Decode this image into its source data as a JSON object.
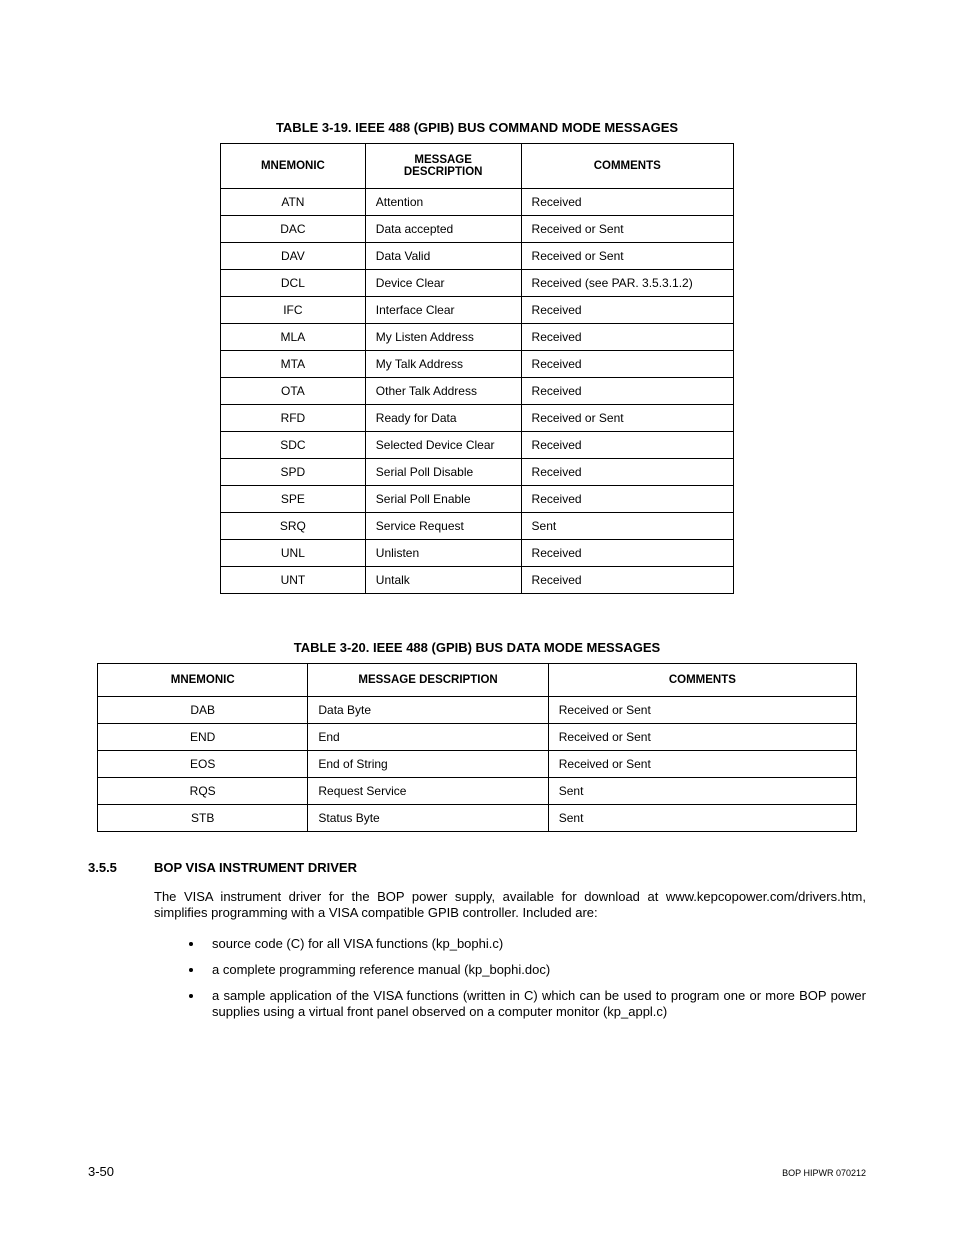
{
  "table1": {
    "title": "TABLE 3-19.  IEEE 488 (GPIB) BUS COMMAND MODE MESSAGES",
    "columns": [
      "MNEMONIC",
      "MESSAGE DESCRIPTION",
      "COMMENTS"
    ],
    "header_col2_line1": "MESSAGE",
    "header_col2_line2": "DESCRIPTION",
    "rows": [
      [
        "ATN",
        "Attention",
        "Received"
      ],
      [
        "DAC",
        "Data accepted",
        "Received or Sent"
      ],
      [
        "DAV",
        "Data Valid",
        "Received or Sent"
      ],
      [
        "DCL",
        "Device Clear",
        "Received (see PAR. 3.5.3.1.2)"
      ],
      [
        "IFC",
        "Interface Clear",
        "Received"
      ],
      [
        "MLA",
        "My Listen Address",
        "Received"
      ],
      [
        "MTA",
        "My Talk Address",
        "Received"
      ],
      [
        "OTA",
        "Other Talk Address",
        "Received"
      ],
      [
        "RFD",
        "Ready for Data",
        "Received or Sent"
      ],
      [
        "SDC",
        "Selected Device Clear",
        "Received"
      ],
      [
        "SPD",
        "Serial Poll Disable",
        "Received"
      ],
      [
        "SPE",
        "Serial Poll Enable",
        "Received"
      ],
      [
        "SRQ",
        "Service Request",
        "Sent"
      ],
      [
        "UNL",
        "Unlisten",
        "Received"
      ],
      [
        "UNT",
        "Untalk",
        "Received"
      ]
    ]
  },
  "table2": {
    "title": "TABLE 3-20.  IEEE 488 (GPIB) BUS DATA MODE MESSAGES",
    "columns": [
      "MNEMONIC",
      "MESSAGE DESCRIPTION",
      "COMMENTS"
    ],
    "rows": [
      [
        "DAB",
        "Data Byte",
        "Received or Sent"
      ],
      [
        "END",
        "End",
        "Received or Sent"
      ],
      [
        "EOS",
        "End of String",
        "Received or Sent"
      ],
      [
        "RQS",
        "Request Service",
        "Sent"
      ],
      [
        "STB",
        "Status Byte",
        "Sent"
      ]
    ]
  },
  "section": {
    "number": "3.5.5",
    "heading": "BOP VISA INSTRUMENT DRIVER",
    "paragraph": "The VISA instrument driver for the BOP power supply, available for download at www.kepcopower.com/drivers.htm, simplifies programming with a VISA compatible GPIB controller. Included are:",
    "bullets": [
      "source code (C) for all VISA functions (kp_bophi.c)",
      "a complete programming reference manual (kp_bophi.doc)",
      "a sample application of the VISA functions (written in C) which can be used to program one or more BOP power supplies using a virtual front panel observed on a computer monitor (kp_appl.c)"
    ]
  },
  "footer": {
    "page": "3-50",
    "docid": "BOP HIPWR 070212"
  }
}
